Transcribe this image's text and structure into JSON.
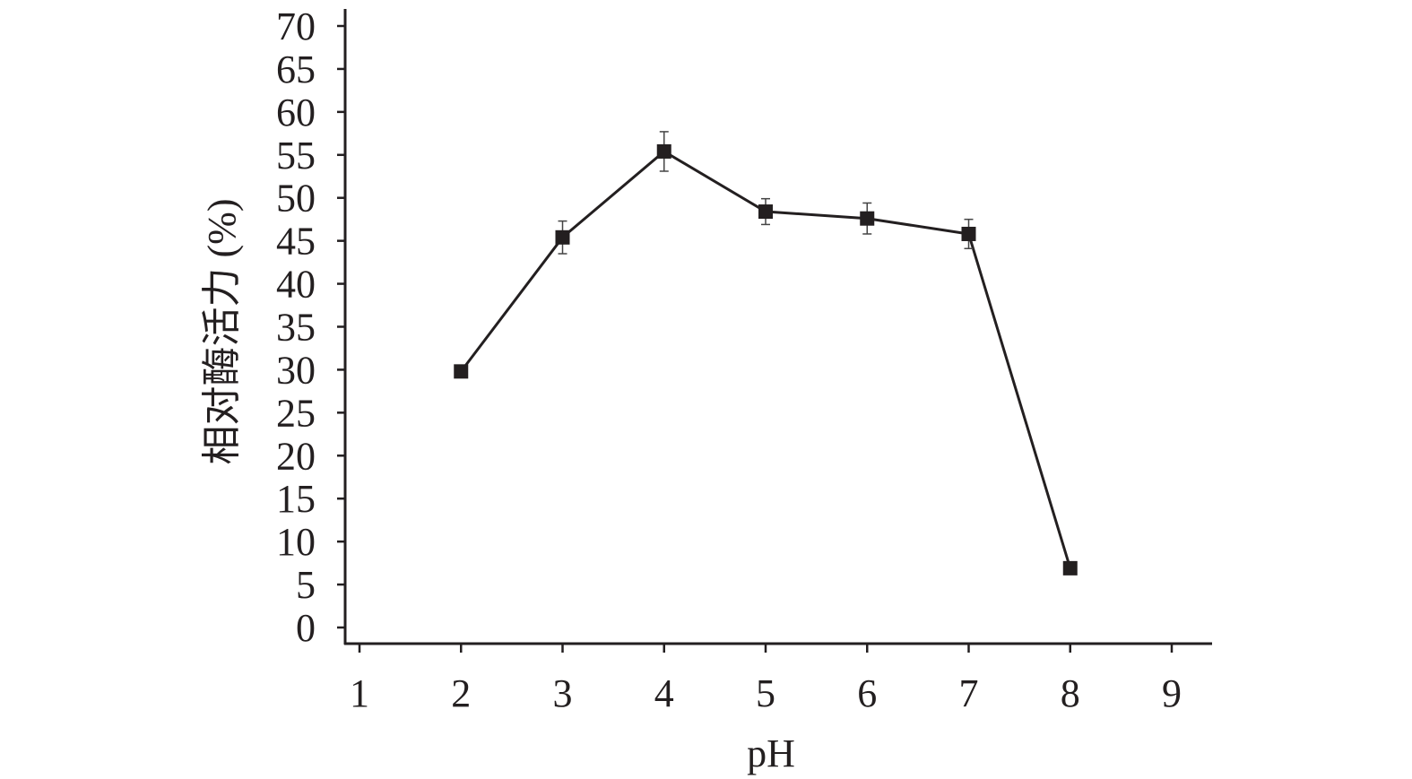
{
  "chart_data": {
    "type": "line",
    "title": "",
    "xlabel": "pH",
    "ylabel": "相对酶活力 (%)",
    "xlim": [
      1,
      9
    ],
    "ylim": [
      0,
      70
    ],
    "x_ticks": [
      "1",
      "2",
      "3",
      "4",
      "5",
      "6",
      "7",
      "8",
      "9"
    ],
    "y_ticks": [
      "0",
      "5",
      "10",
      "15",
      "20",
      "25",
      "30",
      "35",
      "40",
      "45",
      "50",
      "55",
      "60",
      "65",
      "70"
    ],
    "grid": false,
    "marker": "square",
    "color": "#231f20",
    "series": [
      {
        "x": [
          2,
          3,
          4,
          5,
          6,
          7,
          8
        ],
        "y": [
          29.8,
          45.4,
          55.4,
          48.4,
          47.6,
          45.8,
          6.9
        ],
        "error": [
          0,
          1.9,
          2.3,
          1.5,
          1.8,
          1.7,
          0
        ]
      }
    ]
  }
}
